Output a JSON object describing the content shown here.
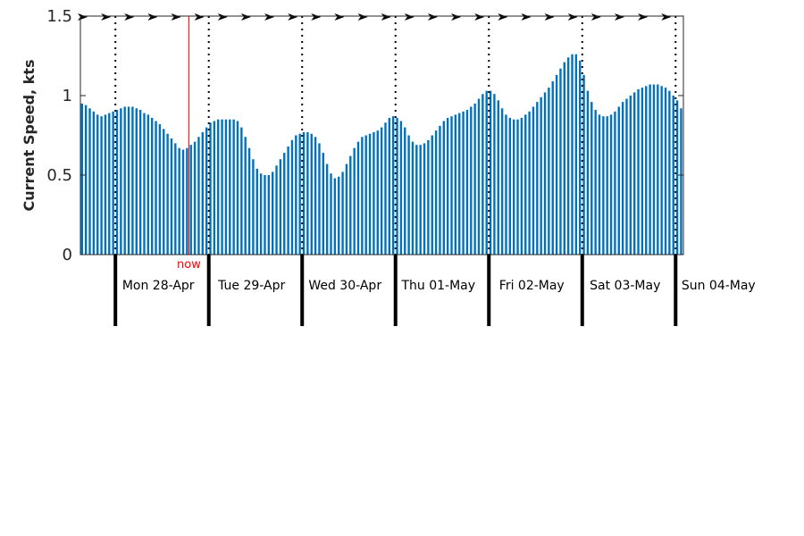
{
  "chart_data": {
    "type": "bar",
    "ylabel": "Current Speed, kts",
    "ylim": [
      0,
      1.5
    ],
    "yticks": [
      {
        "value": 0,
        "label": "0"
      },
      {
        "value": 0.5,
        "label": "0.5"
      },
      {
        "value": 1,
        "label": "1"
      },
      {
        "value": 1.5,
        "label": "1.5"
      }
    ],
    "x_start": "Mon 28-Apr 00:00 minus 9 hours",
    "hours_per_bar": 1,
    "bar_color": "#0072BD",
    "now_color": "#FF0000",
    "now_label": "now",
    "now_hour_offset": 19,
    "days": [
      "Mon 28-Apr",
      "Tue 29-Apr",
      "Wed 30-Apr",
      "Thu 01-May",
      "Fri 02-May",
      "Sat 03-May",
      "Sun 04-May"
    ],
    "values": [
      0.95,
      0.94,
      0.92,
      0.9,
      0.88,
      0.87,
      0.88,
      0.89,
      0.9,
      0.91,
      0.92,
      0.93,
      0.93,
      0.93,
      0.92,
      0.91,
      0.89,
      0.88,
      0.86,
      0.84,
      0.82,
      0.79,
      0.76,
      0.73,
      0.7,
      0.67,
      0.66,
      0.67,
      0.69,
      0.71,
      0.74,
      0.77,
      0.8,
      0.83,
      0.84,
      0.85,
      0.85,
      0.85,
      0.85,
      0.85,
      0.84,
      0.8,
      0.74,
      0.67,
      0.6,
      0.54,
      0.51,
      0.5,
      0.5,
      0.52,
      0.56,
      0.6,
      0.64,
      0.68,
      0.72,
      0.75,
      0.76,
      0.77,
      0.77,
      0.76,
      0.74,
      0.7,
      0.64,
      0.57,
      0.51,
      0.48,
      0.49,
      0.52,
      0.57,
      0.62,
      0.67,
      0.71,
      0.74,
      0.75,
      0.76,
      0.77,
      0.78,
      0.8,
      0.83,
      0.86,
      0.87,
      0.86,
      0.84,
      0.8,
      0.75,
      0.71,
      0.69,
      0.69,
      0.7,
      0.72,
      0.75,
      0.78,
      0.81,
      0.84,
      0.86,
      0.87,
      0.88,
      0.89,
      0.9,
      0.91,
      0.93,
      0.95,
      0.98,
      1.01,
      1.03,
      1.03,
      1.01,
      0.97,
      0.92,
      0.88,
      0.86,
      0.85,
      0.85,
      0.86,
      0.88,
      0.9,
      0.93,
      0.96,
      0.99,
      1.02,
      1.05,
      1.09,
      1.13,
      1.17,
      1.21,
      1.24,
      1.26,
      1.26,
      1.22,
      1.13,
      1.03,
      0.96,
      0.91,
      0.88,
      0.87,
      0.87,
      0.88,
      0.9,
      0.93,
      0.96,
      0.98,
      1.0,
      1.02,
      1.04,
      1.05,
      1.06,
      1.07,
      1.07,
      1.07,
      1.06,
      1.05,
      1.03,
      1.0,
      0.97,
      0.92
    ],
    "direction_marker": "east-arrow"
  }
}
